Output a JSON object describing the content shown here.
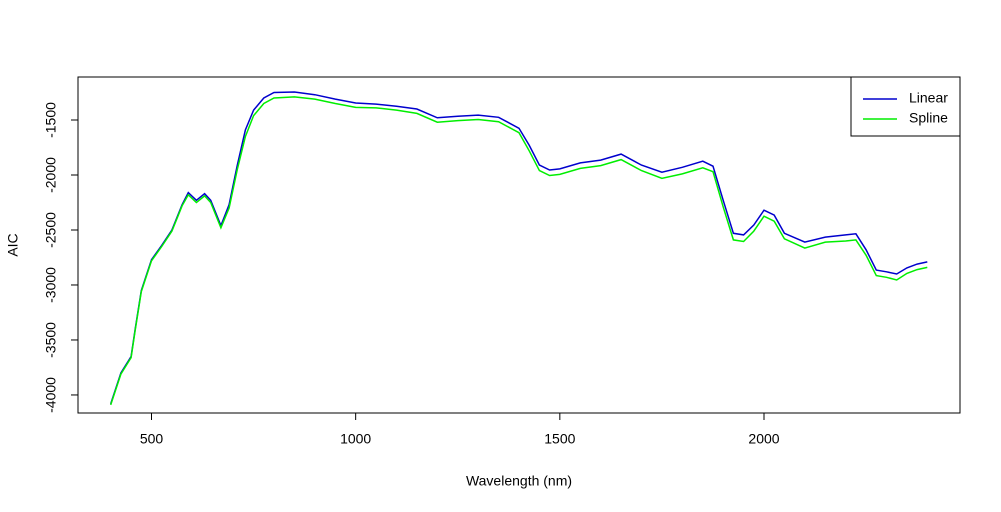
{
  "chart_data": {
    "type": "line",
    "x_label": "Wavelength (nm)",
    "y_label": "AIC",
    "x": [
      400,
      425,
      450,
      460,
      475,
      500,
      525,
      550,
      575,
      590,
      610,
      630,
      645,
      670,
      690,
      710,
      730,
      750,
      775,
      800,
      850,
      900,
      950,
      1000,
      1050,
      1100,
      1150,
      1200,
      1250,
      1300,
      1350,
      1400,
      1425,
      1450,
      1475,
      1500,
      1550,
      1600,
      1650,
      1700,
      1750,
      1800,
      1850,
      1875,
      1900,
      1925,
      1950,
      1975,
      2000,
      2025,
      2050,
      2100,
      2150,
      2200,
      2225,
      2250,
      2275,
      2300,
      2325,
      2350,
      2375,
      2400
    ],
    "series": [
      {
        "name": "Linear",
        "color": "#0000cd",
        "values": [
          -4080,
          -3800,
          -3650,
          -3400,
          -3050,
          -2770,
          -2640,
          -2500,
          -2270,
          -2160,
          -2230,
          -2170,
          -2230,
          -2460,
          -2270,
          -1910,
          -1590,
          -1410,
          -1300,
          -1250,
          -1245,
          -1270,
          -1310,
          -1345,
          -1355,
          -1375,
          -1400,
          -1480,
          -1465,
          -1455,
          -1475,
          -1575,
          -1730,
          -1910,
          -1955,
          -1945,
          -1890,
          -1865,
          -1810,
          -1910,
          -1975,
          -1930,
          -1875,
          -1920,
          -2230,
          -2530,
          -2545,
          -2455,
          -2320,
          -2365,
          -2530,
          -2610,
          -2565,
          -2545,
          -2535,
          -2680,
          -2865,
          -2880,
          -2900,
          -2845,
          -2810,
          -2790
        ]
      },
      {
        "name": "Spline",
        "color": "#00ee00",
        "values": [
          -4090,
          -3810,
          -3660,
          -3410,
          -3060,
          -2780,
          -2650,
          -2510,
          -2280,
          -2180,
          -2250,
          -2190,
          -2250,
          -2480,
          -2300,
          -1950,
          -1650,
          -1460,
          -1350,
          -1300,
          -1290,
          -1310,
          -1350,
          -1385,
          -1390,
          -1410,
          -1440,
          -1520,
          -1505,
          -1495,
          -1515,
          -1615,
          -1780,
          -1960,
          -2005,
          -1995,
          -1940,
          -1915,
          -1860,
          -1960,
          -2030,
          -1990,
          -1935,
          -1970,
          -2290,
          -2590,
          -2605,
          -2510,
          -2375,
          -2420,
          -2580,
          -2665,
          -2610,
          -2600,
          -2590,
          -2730,
          -2915,
          -2930,
          -2955,
          -2895,
          -2860,
          -2840
        ]
      }
    ],
    "xlim": [
      320,
      2480
    ],
    "ylim": [
      -4164,
      -1109
    ],
    "xticks": [
      500,
      1000,
      1500,
      2000
    ],
    "yticks": [
      -4000,
      -3500,
      -3000,
      -2500,
      -2000,
      -1500
    ],
    "legend": "topright"
  }
}
